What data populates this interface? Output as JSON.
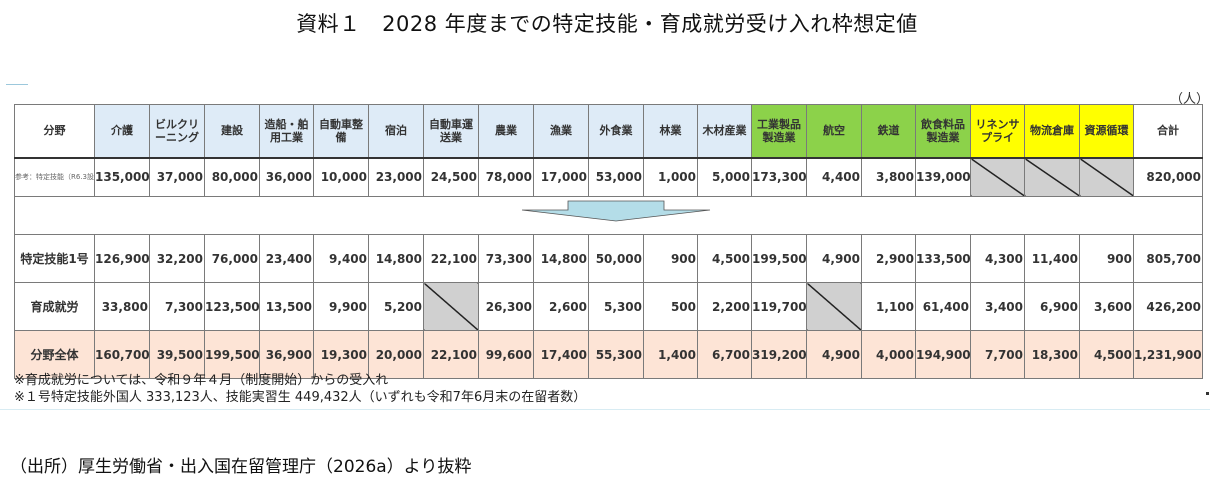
{
  "title": "資料１　2028 年度までの特定技能・育成就労受け入れ枠想定値",
  "unit": "（人）",
  "table": {
    "corner_label": "分野",
    "columns": [
      {
        "label": "介護",
        "color": "blue"
      },
      {
        "label": "ビルクリーニング",
        "color": "blue"
      },
      {
        "label": "建設",
        "color": "blue"
      },
      {
        "label": "造船・舶用工業",
        "color": "blue"
      },
      {
        "label": "自動車整備",
        "color": "blue"
      },
      {
        "label": "宿泊",
        "color": "blue"
      },
      {
        "label": "自動車運送業",
        "color": "blue"
      },
      {
        "label": "農業",
        "color": "blue"
      },
      {
        "label": "漁業",
        "color": "blue"
      },
      {
        "label": "外食業",
        "color": "blue"
      },
      {
        "label": "林業",
        "color": "blue"
      },
      {
        "label": "木材産業",
        "color": "blue"
      },
      {
        "label": "工業製品製造業",
        "color": "green"
      },
      {
        "label": "航空",
        "color": "green"
      },
      {
        "label": "鉄道",
        "color": "green"
      },
      {
        "label": "飲食料品製造業",
        "color": "green"
      },
      {
        "label": "リネンサプライ",
        "color": "yellow"
      },
      {
        "label": "物流倉庫",
        "color": "yellow"
      },
      {
        "label": "資源循環",
        "color": "yellow"
      },
      {
        "label": "合計",
        "color": "white"
      }
    ],
    "rows": [
      {
        "label": "参考：特定技能（R6.3設定）",
        "values": [
          "135,000",
          "37,000",
          "80,000",
          "36,000",
          "10,000",
          "23,000",
          "24,500",
          "78,000",
          "17,000",
          "53,000",
          "1,000",
          "5,000",
          "173,300",
          "4,400",
          "3,800",
          "139,000",
          null,
          null,
          null,
          "820,000"
        ]
      },
      {
        "label": "特定技能1号",
        "values": [
          "126,900",
          "32,200",
          "76,000",
          "23,400",
          "9,400",
          "14,800",
          "22,100",
          "73,300",
          "14,800",
          "50,000",
          "900",
          "4,500",
          "199,500",
          "4,900",
          "2,900",
          "133,500",
          "4,300",
          "11,400",
          "900",
          "805,700"
        ]
      },
      {
        "label": "育成就労",
        "values": [
          "33,800",
          "7,300",
          "123,500",
          "13,500",
          "9,900",
          "5,200",
          null,
          "26,300",
          "2,600",
          "5,300",
          "500",
          "2,200",
          "119,700",
          null,
          "1,100",
          "61,400",
          "3,400",
          "6,900",
          "3,600",
          "426,200"
        ]
      },
      {
        "label": "分野全体",
        "values": [
          "160,700",
          "39,500",
          "199,500",
          "36,900",
          "19,300",
          "20,000",
          "22,100",
          "99,600",
          "17,400",
          "55,300",
          "1,400",
          "6,700",
          "319,200",
          "4,900",
          "4,000",
          "194,900",
          "7,700",
          "18,300",
          "4,500",
          "1,231,900"
        ]
      }
    ]
  },
  "notes": [
    "※育成就労については、令和９年４月（制度開始）からの受入れ",
    "※１号特定技能外国人 333,123人、技能実習生 449,432人（いずれも令和7年6月末の在留者数）"
  ],
  "source": "（出所）厚生労働省・出入国在留管理庁（2026a）より抜粋",
  "colors": {
    "blue": "#deebf7",
    "green": "#8cd24a",
    "yellow": "#ffff00",
    "total_row": "#fde4d6",
    "na_cell": "#d0d0d0",
    "arrow": "#b4dde8"
  }
}
